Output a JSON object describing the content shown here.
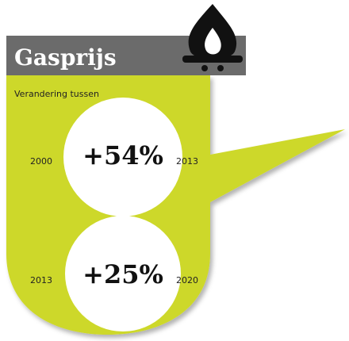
{
  "header": {
    "title": "Gasprijs",
    "subtitle": "Verandering tussen"
  },
  "panels": [
    {
      "from": "2000",
      "to": "2013",
      "change": "+54%"
    },
    {
      "from": "2013",
      "to": "2020",
      "change": "+25%"
    }
  ]
}
